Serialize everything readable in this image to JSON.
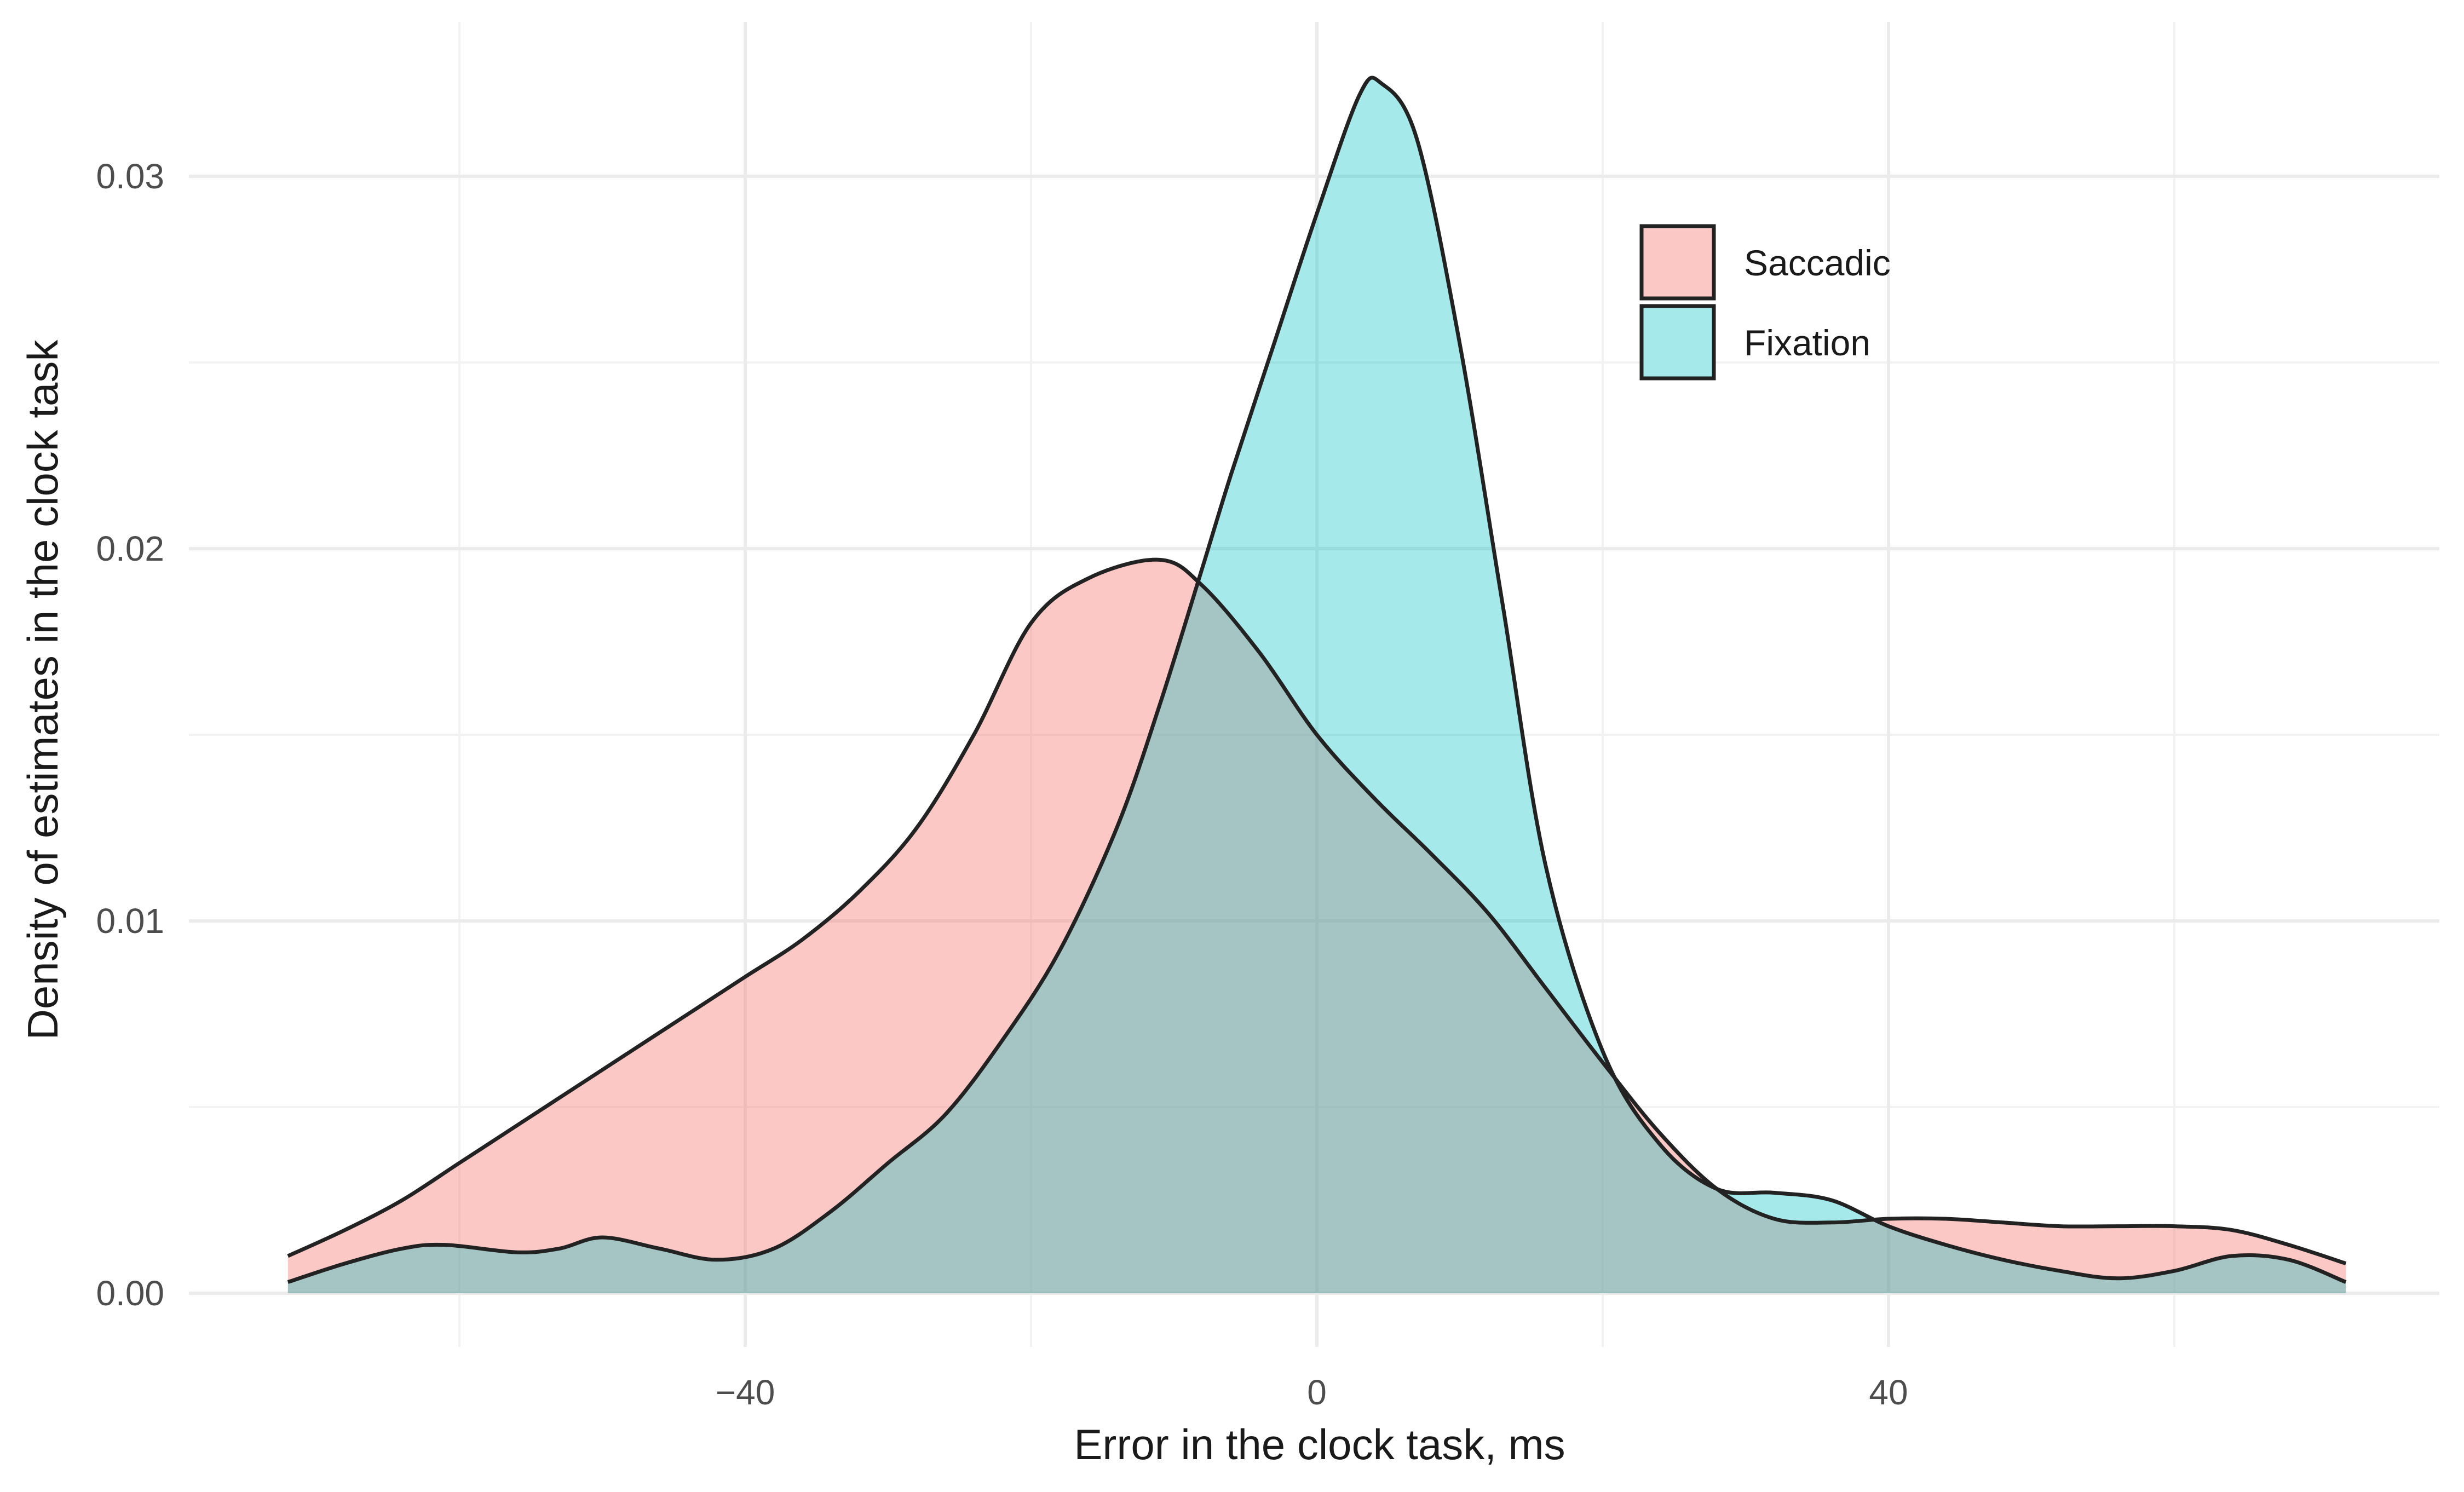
{
  "chart_data": {
    "type": "area",
    "xlabel": "Error in the clock task, ms",
    "ylabel": "Density of estimates in the clock task",
    "xlim": [
      -72,
      72
    ],
    "ylim": [
      0,
      0.034
    ],
    "x_ticks": [
      {
        "value": -40,
        "label": "−40"
      },
      {
        "value": 0,
        "label": "0"
      },
      {
        "value": 40,
        "label": "40"
      }
    ],
    "x_minor_ticks": [
      -60,
      -20,
      20,
      60
    ],
    "y_ticks": [
      {
        "value": 0,
        "label": "0.00"
      },
      {
        "value": 0.01,
        "label": "0.01"
      },
      {
        "value": 0.02,
        "label": "0.02"
      },
      {
        "value": 0.03,
        "label": "0.03"
      }
    ],
    "y_minor_ticks": [
      0.005,
      0.015,
      0.025
    ],
    "grid": true,
    "legend": {
      "position": "top-right-inside"
    },
    "series": [
      {
        "name": "Saccadic",
        "color": "#F8766D",
        "fill_opacity": 0.4,
        "points": [
          [
            -72,
            0.001
          ],
          [
            -68,
            0.0017
          ],
          [
            -64,
            0.0025
          ],
          [
            -60,
            0.0035
          ],
          [
            -56,
            0.0045
          ],
          [
            -52,
            0.0055
          ],
          [
            -48,
            0.0065
          ],
          [
            -44,
            0.0075
          ],
          [
            -40,
            0.0085
          ],
          [
            -36,
            0.0095
          ],
          [
            -32,
            0.0108
          ],
          [
            -28,
            0.0125
          ],
          [
            -24,
            0.015
          ],
          [
            -20,
            0.018
          ],
          [
            -16,
            0.0192
          ],
          [
            -11,
            0.0197
          ],
          [
            -8,
            0.019
          ],
          [
            -4,
            0.0172
          ],
          [
            0,
            0.015
          ],
          [
            4,
            0.0133
          ],
          [
            8,
            0.0118
          ],
          [
            12,
            0.0102
          ],
          [
            16,
            0.0082
          ],
          [
            20,
            0.0062
          ],
          [
            24,
            0.0043
          ],
          [
            28,
            0.0028
          ],
          [
            32,
            0.002
          ],
          [
            36,
            0.0019
          ],
          [
            40,
            0.002
          ],
          [
            44,
            0.002
          ],
          [
            48,
            0.0019
          ],
          [
            52,
            0.0018
          ],
          [
            56,
            0.0018
          ],
          [
            60,
            0.0018
          ],
          [
            64,
            0.0017
          ],
          [
            68,
            0.0013
          ],
          [
            72,
            0.0008
          ]
        ]
      },
      {
        "name": "Fixation",
        "color": "#00BFC4",
        "fill_opacity": 0.35,
        "points": [
          [
            -72,
            0.0003
          ],
          [
            -68,
            0.0008
          ],
          [
            -64,
            0.0012
          ],
          [
            -61,
            0.0013
          ],
          [
            -56,
            0.0011
          ],
          [
            -53,
            0.0012
          ],
          [
            -50,
            0.0015
          ],
          [
            -46,
            0.0012
          ],
          [
            -42,
            0.0009
          ],
          [
            -38,
            0.0012
          ],
          [
            -34,
            0.0022
          ],
          [
            -30,
            0.0035
          ],
          [
            -26,
            0.0048
          ],
          [
            -22,
            0.0068
          ],
          [
            -18,
            0.0092
          ],
          [
            -14,
            0.0125
          ],
          [
            -11,
            0.0158
          ],
          [
            -8,
            0.0195
          ],
          [
            -6,
            0.022
          ],
          [
            -3,
            0.0255
          ],
          [
            0,
            0.029
          ],
          [
            3,
            0.0322
          ],
          [
            4.5,
            0.0325
          ],
          [
            7,
            0.031
          ],
          [
            10,
            0.0255
          ],
          [
            13,
            0.0185
          ],
          [
            16,
            0.0115
          ],
          [
            20,
            0.0065
          ],
          [
            24,
            0.004
          ],
          [
            28,
            0.0028
          ],
          [
            32,
            0.0027
          ],
          [
            36,
            0.0025
          ],
          [
            40,
            0.0018
          ],
          [
            44,
            0.0013
          ],
          [
            48,
            0.0009
          ],
          [
            52,
            0.0006
          ],
          [
            56,
            0.0004
          ],
          [
            60,
            0.0006
          ],
          [
            64,
            0.001
          ],
          [
            68,
            0.0009
          ],
          [
            72,
            0.0003
          ]
        ]
      }
    ]
  }
}
